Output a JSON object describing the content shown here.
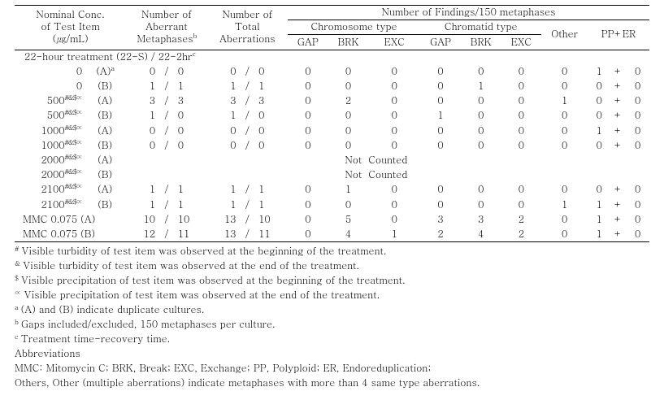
{
  "header": {
    "nominal_l1": "Nominal Conc.",
    "nominal_l2": "of Test Item",
    "nominal_l3": "(㎍/mL)",
    "nam_l1": "Number of",
    "nam_l2": "Aberrant",
    "nam_l3": "Metaphases",
    "nta_l1": "Number of",
    "nta_l2": "Total",
    "nta_l3": "Aberrations",
    "findings": "Number of Findings/150 metaphases",
    "chrom_type": "Chromosome type",
    "chromatid_type": "Chromatid type",
    "gap": "GAP",
    "brk": "BRK",
    "exc": "EXC",
    "other": "Other",
    "pper": "PP+ER"
  },
  "sup": {
    "b": "b",
    "a": "a",
    "sym": "#&$∝",
    "c": "c"
  },
  "treat_row": "22-hour treatment (22-S) / 22-2hr",
  "rows": [
    {
      "conc": "0",
      "sym": "",
      "rep": "(A)",
      "rep_sup": "a",
      "mA": "0",
      "mB": "0",
      "tA": "0",
      "tB": "0",
      "g1": "0",
      "b1": "0",
      "e1": "0",
      "g2": "0",
      "b2": "0",
      "e2": "0",
      "oth": "0",
      "pp": "1",
      "er": "0"
    },
    {
      "conc": "0",
      "sym": "",
      "rep": "(B)",
      "rep_sup": "",
      "mA": "1",
      "mB": "1",
      "tA": "1",
      "tB": "1",
      "g1": "0",
      "b1": "0",
      "e1": "0",
      "g2": "0",
      "b2": "1",
      "e2": "0",
      "oth": "0",
      "pp": "0",
      "er": "0"
    },
    {
      "conc": "500",
      "sym": "#&$∝",
      "rep": "(A)",
      "rep_sup": "",
      "mA": "3",
      "mB": "3",
      "tA": "3",
      "tB": "3",
      "g1": "0",
      "b1": "2",
      "e1": "0",
      "g2": "0",
      "b2": "0",
      "e2": "0",
      "oth": "1",
      "pp": "0",
      "er": "0"
    },
    {
      "conc": "500",
      "sym": "#&$∝",
      "rep": "(B)",
      "rep_sup": "",
      "mA": "1",
      "mB": "0",
      "tA": "1",
      "tB": "0",
      "g1": "0",
      "b1": "0",
      "e1": "0",
      "g2": "1",
      "b2": "0",
      "e2": "0",
      "oth": "0",
      "pp": "0",
      "er": "0"
    },
    {
      "conc": "1000",
      "sym": "#&$∝",
      "rep": "(A)",
      "rep_sup": "",
      "mA": "0",
      "mB": "0",
      "tA": "0",
      "tB": "0",
      "g1": "0",
      "b1": "0",
      "e1": "0",
      "g2": "0",
      "b2": "0",
      "e2": "0",
      "oth": "0",
      "pp": "1",
      "er": "0"
    },
    {
      "conc": "1000",
      "sym": "#&$∝",
      "rep": "(B)",
      "rep_sup": "",
      "mA": "0",
      "mB": "0",
      "tA": "0",
      "tB": "0",
      "g1": "0",
      "b1": "0",
      "e1": "0",
      "g2": "0",
      "b2": "0",
      "e2": "0",
      "oth": "0",
      "pp": "0",
      "er": "0"
    },
    {
      "conc": "2000",
      "sym": "#&$∝",
      "rep": "(A)",
      "not": true,
      "nc1": "Not",
      "nc2": "Counted"
    },
    {
      "conc": "2000",
      "sym": "#&$∝",
      "rep": "(B)",
      "not": true,
      "nc1": "Not",
      "nc2": "Counted"
    },
    {
      "conc": "2100",
      "sym": "#&$∝",
      "rep": "(A)",
      "rep_sup": "",
      "mA": "1",
      "mB": "1",
      "tA": "1",
      "tB": "1",
      "g1": "0",
      "b1": "1",
      "e1": "0",
      "g2": "0",
      "b2": "0",
      "e2": "0",
      "oth": "0",
      "pp": "0",
      "er": "0"
    },
    {
      "conc": "2100",
      "sym": "#&$∝",
      "rep": "(B)",
      "rep_sup": "",
      "mA": "1",
      "mB": "1",
      "tA": "1",
      "tB": "1",
      "g1": "0",
      "b1": "0",
      "e1": "0",
      "g2": "0",
      "b2": "0",
      "e2": "0",
      "oth": "1",
      "pp": "1",
      "er": "0"
    },
    {
      "mmc": true,
      "conc": "MMC 0.075 (A)",
      "mA": "10",
      "mB": "10",
      "tA": "13",
      "tB": "10",
      "g1": "0",
      "b1": "5",
      "e1": "0",
      "g2": "3",
      "b2": "3",
      "e2": "2",
      "oth": "0",
      "pp": "1",
      "er": "0"
    },
    {
      "mmc": true,
      "conc": "MMC 0.075 (B)",
      "mA": "12",
      "mB": "11",
      "tA": "13",
      "tB": "11",
      "g1": "0",
      "b1": "4",
      "e1": "1",
      "g2": "2",
      "b2": "4",
      "e2": "2",
      "oth": "0",
      "pp": "1",
      "er": "0"
    }
  ],
  "notes": {
    "n1": " Visible turbidity of test item was observed at the beginning of the treatment.",
    "n2": " Visible turbidity of test item was observed at the end of the treatment.",
    "n3": " Visible precipitation of test item was observed at the beginning of the treatment.",
    "n4": " Visible precipitation of test item was observed at the end of the treatment.",
    "n5": " (A) and (B) indicate duplicate cultures.",
    "n6": " Gaps included/excluded, 150 metaphases per culture.",
    "n7": " Treatment time-recovery time.",
    "abbrT": "Abbreviations",
    "abbr1": "MMC: Mitomycin C; BRK, Break; EXC, Exchange; PP, Polyploid; ER, Endoreduplication;",
    "abbr2": "Others, Other (multiple aberrations) indicate metaphases with more than 4 same type aberrations."
  },
  "sym_notes": {
    "s1": "#",
    "s2": "&",
    "s3": "$",
    "s4": "∝",
    "s5": "a",
    "s6": "b",
    "s7": "c"
  }
}
